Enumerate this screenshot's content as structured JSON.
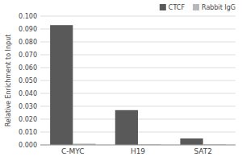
{
  "chart_data": {
    "type": "bar",
    "categories": [
      "C-MYC",
      "H19",
      "SAT2"
    ],
    "series": [
      {
        "name": "CTCF",
        "color": "#595959",
        "values": [
          0.093,
          0.027,
          0.005
        ]
      },
      {
        "name": "Rabbit IgG",
        "color": "#b8b8b8",
        "values": [
          0.001,
          0.0005,
          0.0005
        ]
      }
    ],
    "ylabel": "Relative Enrichment to Input",
    "ylim": [
      0,
      0.1
    ],
    "yticks": [
      {
        "value": 0.0,
        "label": "0.000"
      },
      {
        "value": 0.01,
        "label": "0.010"
      },
      {
        "value": 0.02,
        "label": "0.020"
      },
      {
        "value": 0.03,
        "label": "0.030"
      },
      {
        "value": 0.04,
        "label": "0.040"
      },
      {
        "value": 0.05,
        "label": "0.050"
      },
      {
        "value": 0.06,
        "label": "0.060"
      },
      {
        "value": 0.07,
        "label": "0.070"
      },
      {
        "value": 0.08,
        "label": "0.080"
      },
      {
        "value": 0.09,
        "label": "0.090"
      },
      {
        "value": 0.1,
        "label": "0.100"
      }
    ],
    "grid": true,
    "legend": "upper right"
  }
}
